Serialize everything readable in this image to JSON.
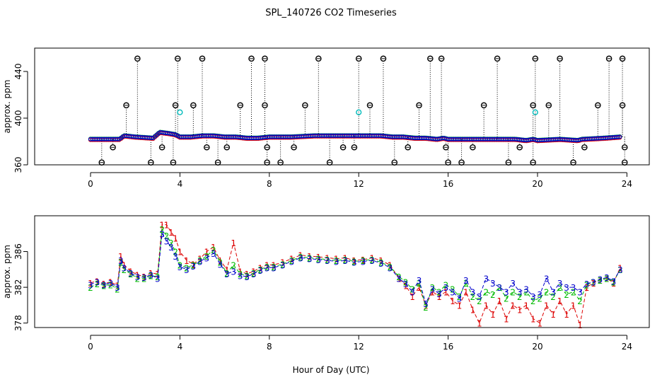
{
  "chart_data": [
    {
      "type": "scatter",
      "title": "SPL_140726  CO2 Timeseries",
      "ylabel": "approx. ppm",
      "xlim": [
        -2.5,
        25
      ],
      "ylim": [
        360,
        460
      ],
      "xticks": [
        0,
        4,
        8,
        12,
        16,
        20,
        24
      ],
      "yticks": [
        360,
        400,
        440
      ],
      "baseline": {
        "name": "main",
        "x": [
          0,
          1.3,
          1.5,
          2.0,
          2.8,
          3.1,
          3.5,
          3.8,
          4.0,
          4.5,
          5.0,
          5.5,
          6.0,
          6.5,
          7.0,
          7.5,
          8.0,
          9.0,
          10.0,
          11.0,
          12.0,
          13.0,
          13.5,
          14.0,
          14.5,
          15.0,
          15.5,
          15.8,
          16.0,
          17.0,
          18.0,
          19.0,
          19.5,
          19.8,
          20.0,
          21.0,
          21.8,
          22.0,
          23.0,
          23.7
        ],
        "y": [
          382,
          382,
          385,
          384,
          383,
          388,
          387,
          386,
          384,
          384,
          385,
          385,
          384,
          384,
          383,
          383,
          384,
          384,
          385,
          385,
          385,
          385,
          384,
          384,
          383,
          383,
          382,
          383,
          382,
          382,
          382,
          382,
          381,
          382,
          381,
          382,
          381,
          382,
          383,
          384
        ]
      },
      "outliers_high": {
        "x": [
          2.1,
          3.9,
          5.0,
          7.2,
          7.8,
          10.2,
          12.0,
          13.1,
          15.2,
          15.7,
          18.2,
          19.9,
          21.0,
          23.2,
          23.8
        ],
        "y": [
          451,
          451,
          451,
          451,
          451,
          451,
          451,
          451,
          451,
          451,
          451,
          451,
          451,
          451,
          451
        ]
      },
      "outliers_mid": {
        "x": [
          1.6,
          3.8,
          4.6,
          6.7,
          7.8,
          9.6,
          12.5,
          14.7,
          17.6,
          19.8,
          20.5,
          22.7,
          23.8
        ],
        "y": [
          411,
          411,
          411,
          411,
          411,
          411,
          411,
          411,
          411,
          411,
          411,
          411,
          411
        ]
      },
      "outliers_low": {
        "x": [
          1.0,
          3.2,
          5.2,
          6.1,
          7.9,
          9.1,
          11.3,
          11.8,
          14.2,
          15.9,
          17.1,
          19.2,
          22.1,
          23.9
        ],
        "y": [
          375,
          375,
          375,
          375,
          375,
          375,
          375,
          375,
          375,
          375,
          375,
          375,
          375,
          375
        ]
      },
      "outliers_floor": {
        "x": [
          0.5,
          2.7,
          3.7,
          5.7,
          7.9,
          8.5,
          10.7,
          13.6,
          16.0,
          16.6,
          18.7,
          19.8,
          21.6,
          23.9
        ],
        "y": [
          362,
          362,
          362,
          362,
          362,
          362,
          362,
          362,
          362,
          362,
          362,
          362,
          362,
          362
        ]
      },
      "flagged": {
        "x": [
          4.0,
          12.0,
          19.9
        ],
        "y": [
          405,
          405,
          405
        ]
      }
    },
    {
      "type": "line",
      "xlabel": "Hour of Day (UTC)",
      "ylabel": "approx. ppm",
      "xlim": [
        -2.5,
        25
      ],
      "ylim": [
        377.5,
        390
      ],
      "xticks": [
        0,
        4,
        8,
        12,
        16,
        20,
        24
      ],
      "yticks": [
        378,
        382,
        386
      ],
      "series": [
        {
          "name": "1",
          "x": [
            0.0,
            0.3,
            0.6,
            0.9,
            1.2,
            1.35,
            1.5,
            1.8,
            2.1,
            2.4,
            2.7,
            3.0,
            3.2,
            3.4,
            3.6,
            3.8,
            4.0,
            4.3,
            4.6,
            4.9,
            5.2,
            5.5,
            5.8,
            6.1,
            6.4,
            6.7,
            7.0,
            7.3,
            7.6,
            7.9,
            8.2,
            8.6,
            9.0,
            9.4,
            9.8,
            10.2,
            10.6,
            11.0,
            11.4,
            11.8,
            12.2,
            12.6,
            13.0,
            13.4,
            13.8,
            14.1,
            14.4,
            14.7,
            15.0,
            15.3,
            15.6,
            15.9,
            16.2,
            16.5,
            16.8,
            17.1,
            17.4,
            17.7,
            18.0,
            18.3,
            18.6,
            18.9,
            19.2,
            19.5,
            19.8,
            20.1,
            20.4,
            20.7,
            21.0,
            21.3,
            21.6,
            21.9,
            22.2,
            22.5,
            22.8,
            23.1,
            23.4,
            23.7
          ],
          "y": [
            382.5,
            382.7,
            382.4,
            382.6,
            382.2,
            385.5,
            384.5,
            383.8,
            383.4,
            383.2,
            383.6,
            383.5,
            389.0,
            389.0,
            388.2,
            387.5,
            386.0,
            385.0,
            384.6,
            385.2,
            386.0,
            386.5,
            385.0,
            384.0,
            387.0,
            383.8,
            383.5,
            383.8,
            384.2,
            384.5,
            384.5,
            384.8,
            385.2,
            385.6,
            385.5,
            385.4,
            385.3,
            385.2,
            385.3,
            385.0,
            385.1,
            385.3,
            385.0,
            384.5,
            383.0,
            382.2,
            381.0,
            382.0,
            380.0,
            381.5,
            381.0,
            381.5,
            380.5,
            380.0,
            381.5,
            379.5,
            378.0,
            380.0,
            379.0,
            380.5,
            378.5,
            380.0,
            379.5,
            380.0,
            378.5,
            378.0,
            380.0,
            379.0,
            380.5,
            379.0,
            380.0,
            377.8,
            382.0,
            382.5,
            382.8,
            383.0,
            382.5,
            384.2
          ]
        },
        {
          "name": "2",
          "x": [
            0.0,
            0.3,
            0.6,
            0.9,
            1.2,
            1.35,
            1.5,
            1.8,
            2.1,
            2.4,
            2.7,
            3.0,
            3.2,
            3.4,
            3.6,
            3.8,
            4.0,
            4.3,
            4.6,
            4.9,
            5.2,
            5.5,
            5.8,
            6.1,
            6.4,
            6.7,
            7.0,
            7.3,
            7.6,
            7.9,
            8.2,
            8.6,
            9.0,
            9.4,
            9.8,
            10.2,
            10.6,
            11.0,
            11.4,
            11.8,
            12.2,
            12.6,
            13.0,
            13.4,
            13.8,
            14.1,
            14.4,
            14.7,
            15.0,
            15.3,
            15.6,
            15.9,
            16.2,
            16.5,
            16.8,
            17.1,
            17.4,
            17.7,
            18.0,
            18.3,
            18.6,
            18.9,
            19.2,
            19.5,
            19.8,
            20.1,
            20.4,
            20.7,
            21.0,
            21.3,
            21.6,
            21.9,
            22.2,
            22.5,
            22.8,
            23.1,
            23.4,
            23.7
          ],
          "y": [
            382.0,
            382.4,
            382.2,
            382.3,
            381.8,
            384.8,
            384.0,
            383.5,
            383.0,
            383.0,
            383.3,
            383.2,
            388.5,
            387.8,
            387.0,
            386.0,
            384.5,
            384.2,
            384.5,
            385.0,
            385.5,
            386.2,
            384.8,
            383.6,
            384.5,
            383.5,
            383.3,
            383.6,
            384.0,
            384.3,
            384.3,
            384.6,
            385.0,
            385.4,
            385.3,
            385.2,
            385.1,
            385.0,
            385.1,
            384.9,
            385.0,
            385.1,
            384.8,
            384.3,
            383.2,
            382.6,
            381.8,
            382.5,
            379.8,
            382.0,
            381.5,
            382.3,
            381.8,
            381.0,
            382.5,
            381.0,
            380.5,
            381.5,
            381.2,
            382.0,
            380.8,
            381.5,
            381.0,
            381.5,
            380.5,
            380.8,
            381.5,
            381.0,
            382.0,
            381.2,
            381.5,
            380.5,
            382.3,
            382.6,
            382.8,
            383.0,
            382.6,
            384.0
          ]
        },
        {
          "name": "3",
          "x": [
            0.0,
            0.3,
            0.6,
            0.9,
            1.2,
            1.35,
            1.5,
            1.8,
            2.1,
            2.4,
            2.7,
            3.0,
            3.2,
            3.4,
            3.6,
            3.8,
            4.0,
            4.3,
            4.6,
            4.9,
            5.2,
            5.5,
            5.8,
            6.1,
            6.4,
            6.7,
            7.0,
            7.3,
            7.6,
            7.9,
            8.2,
            8.6,
            9.0,
            9.4,
            9.8,
            10.2,
            10.6,
            11.0,
            11.4,
            11.8,
            12.2,
            12.6,
            13.0,
            13.4,
            13.8,
            14.1,
            14.4,
            14.7,
            15.0,
            15.3,
            15.6,
            15.9,
            16.2,
            16.5,
            16.8,
            17.1,
            17.4,
            17.7,
            18.0,
            18.3,
            18.6,
            18.9,
            19.2,
            19.5,
            19.8,
            20.1,
            20.4,
            20.7,
            21.0,
            21.3,
            21.6,
            21.9,
            22.2,
            22.5,
            22.8,
            23.1,
            23.4,
            23.7
          ],
          "y": [
            382.3,
            382.6,
            382.3,
            382.5,
            382.0,
            385.0,
            384.2,
            383.6,
            383.2,
            383.1,
            383.4,
            383.0,
            388.0,
            387.2,
            386.5,
            385.5,
            384.3,
            384.0,
            384.4,
            384.9,
            385.3,
            385.8,
            384.6,
            383.5,
            383.8,
            383.3,
            383.2,
            383.5,
            383.9,
            384.2,
            384.2,
            384.5,
            384.9,
            385.3,
            385.2,
            385.1,
            385.0,
            384.9,
            385.0,
            384.8,
            384.9,
            385.0,
            384.7,
            384.2,
            383.0,
            382.4,
            381.5,
            382.8,
            380.2,
            381.8,
            381.3,
            382.0,
            381.5,
            380.8,
            382.8,
            381.5,
            381.0,
            383.0,
            382.5,
            382.0,
            381.5,
            382.5,
            381.5,
            381.8,
            381.0,
            381.2,
            383.0,
            381.5,
            382.5,
            382.0,
            382.0,
            381.5,
            382.4,
            382.6,
            382.9,
            383.1,
            382.7,
            384.0
          ]
        }
      ]
    }
  ]
}
